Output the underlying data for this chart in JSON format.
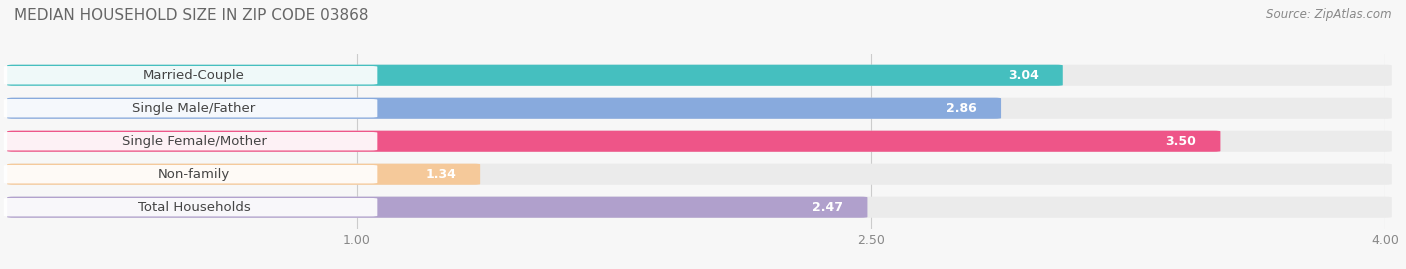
{
  "title": "MEDIAN HOUSEHOLD SIZE IN ZIP CODE 03868",
  "source": "Source: ZipAtlas.com",
  "categories": [
    "Married-Couple",
    "Single Male/Father",
    "Single Female/Mother",
    "Non-family",
    "Total Households"
  ],
  "values": [
    3.04,
    2.86,
    3.5,
    1.34,
    2.47
  ],
  "bar_colors": [
    "#45BFBF",
    "#88AADD",
    "#EE5588",
    "#F5C99A",
    "#B0A0CC"
  ],
  "xlim_start": 0,
  "xlim_end": 4.0,
  "xticks": [
    1.0,
    2.5,
    4.0
  ],
  "bar_height": 0.6,
  "bg_color": "#f7f7f7",
  "bar_bg_color": "#ebebeb",
  "label_fontsize": 9.5,
  "title_fontsize": 11,
  "value_fontsize": 9
}
